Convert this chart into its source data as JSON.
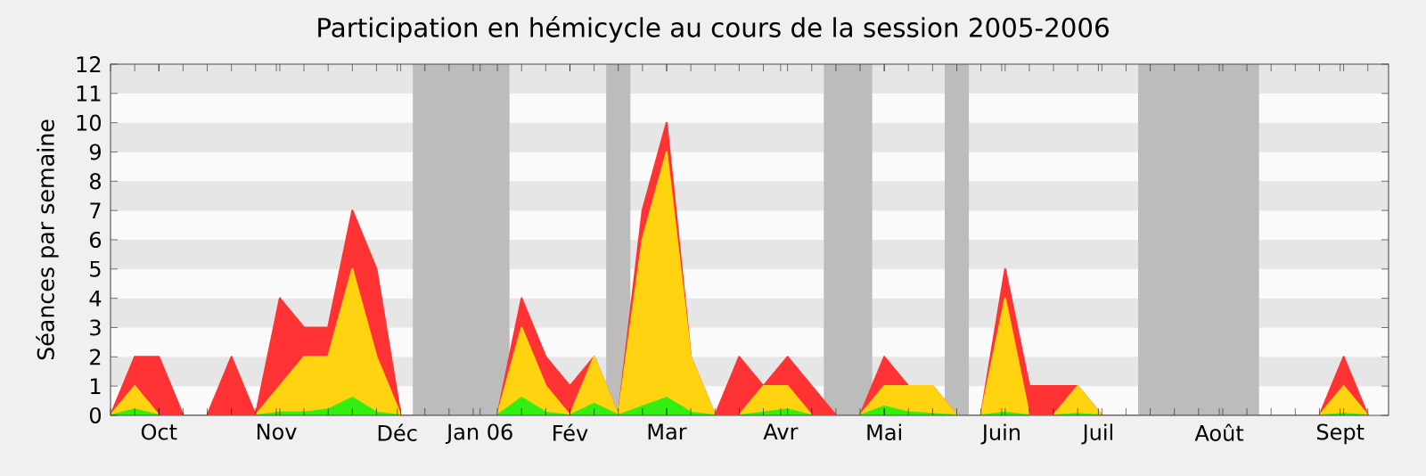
{
  "chart_data": {
    "type": "area",
    "stacked": true,
    "title": "Participation en hémicycle au cours de la session 2005-2006",
    "ylabel": "Séances par semaine",
    "x": [
      "2005-09-26",
      "2005-10-03",
      "2005-10-10",
      "2005-10-17",
      "2005-10-24",
      "2005-10-31",
      "2005-11-07",
      "2005-11-14",
      "2005-11-21",
      "2005-11-28",
      "2005-12-05",
      "2005-12-12",
      "2005-12-19",
      "2005-12-26",
      "2006-01-02",
      "2006-01-09",
      "2006-01-16",
      "2006-01-23",
      "2006-01-30",
      "2006-02-06",
      "2006-02-13",
      "2006-02-20",
      "2006-02-27",
      "2006-03-06",
      "2006-03-13",
      "2006-03-20",
      "2006-03-27",
      "2006-04-03",
      "2006-04-10",
      "2006-04-17",
      "2006-04-24",
      "2006-05-01",
      "2006-05-08",
      "2006-05-15",
      "2006-05-22",
      "2006-05-29",
      "2006-06-05",
      "2006-06-12",
      "2006-06-19",
      "2006-06-26",
      "2006-07-03",
      "2006-07-10",
      "2006-07-17",
      "2006-07-24",
      "2006-07-31",
      "2006-08-07",
      "2006-08-14",
      "2006-08-21",
      "2006-08-28",
      "2006-09-04",
      "2006-09-11",
      "2006-09-18",
      "2006-09-25"
    ],
    "series": [
      {
        "color": "#33ee11",
        "values": [
          0,
          0.2,
          0,
          0,
          0,
          0,
          0,
          0.1,
          0.1,
          0.2,
          0.6,
          0.1,
          0,
          0,
          0,
          0,
          0,
          0.6,
          0.1,
          0,
          0.4,
          0,
          0.3,
          0.6,
          0.1,
          0,
          0,
          0.1,
          0.2,
          0,
          0,
          0,
          0.3,
          0.1,
          0.05,
          0,
          0,
          0.1,
          0,
          0,
          0.05,
          0,
          0,
          0,
          0,
          0,
          0,
          0,
          0,
          0,
          0,
          0.05,
          0
        ]
      },
      {
        "color": "#ffd30f",
        "values": [
          0,
          0.8,
          0,
          0,
          0,
          0,
          0,
          0.9,
          1.9,
          1.8,
          4.4,
          1.9,
          0,
          0,
          0,
          0,
          0,
          2.4,
          0.9,
          0,
          1.6,
          0,
          5.7,
          8.4,
          1.9,
          0,
          0,
          0.9,
          0.8,
          0,
          0,
          0,
          0.7,
          0.9,
          0.95,
          0,
          0,
          3.9,
          0,
          0,
          0.95,
          0,
          0,
          0,
          0,
          0,
          0,
          0,
          0,
          0,
          0,
          0.95,
          0
        ]
      },
      {
        "color": "#ff3333",
        "values": [
          0,
          1,
          2,
          0,
          0,
          2,
          0,
          3,
          1,
          1,
          2,
          3,
          0,
          0,
          0,
          0,
          0,
          1,
          1,
          1,
          0,
          0,
          1,
          1,
          0,
          0,
          2,
          0,
          1,
          1,
          0,
          0,
          1,
          0,
          0,
          0,
          0,
          1,
          1,
          1,
          0,
          0,
          0,
          0,
          0,
          0,
          0,
          0,
          0,
          0,
          0,
          1,
          0
        ]
      }
    ],
    "xlim": [
      "2005-09-26",
      "2006-10-01"
    ],
    "ylim": [
      0,
      12
    ],
    "yticks": [
      0,
      1,
      2,
      3,
      4,
      5,
      6,
      7,
      8,
      9,
      10,
      11,
      12
    ],
    "xticks": [
      {
        "value": "2005-09-26",
        "label": null
      },
      {
        "value": "2005-10-03",
        "label": null
      },
      {
        "value": "2005-10-10",
        "label": null
      },
      {
        "value": "2005-10-17",
        "label": null
      },
      {
        "value": "2005-10-24",
        "label": null
      },
      {
        "value": "2005-10-31",
        "label": null
      },
      {
        "value": "2005-11-07",
        "label": null
      },
      {
        "value": "2005-11-14",
        "label": null
      },
      {
        "value": "2005-11-21",
        "label": null
      },
      {
        "value": "2005-11-28",
        "label": null
      },
      {
        "value": "2005-12-05",
        "label": null
      },
      {
        "value": "2005-12-12",
        "label": null
      },
      {
        "value": "2005-12-19",
        "label": null
      },
      {
        "value": "2005-12-26",
        "label": null
      },
      {
        "value": "2006-01-02",
        "label": null
      },
      {
        "value": "2006-01-09",
        "label": null
      },
      {
        "value": "2006-01-16",
        "label": null
      },
      {
        "value": "2006-01-23",
        "label": null
      },
      {
        "value": "2006-01-30",
        "label": null
      },
      {
        "value": "2006-02-06",
        "label": null
      },
      {
        "value": "2006-02-13",
        "label": null
      },
      {
        "value": "2006-02-20",
        "label": null
      },
      {
        "value": "2006-02-27",
        "label": null
      },
      {
        "value": "2006-03-06",
        "label": null
      },
      {
        "value": "2006-03-13",
        "label": null
      },
      {
        "value": "2006-03-20",
        "label": null
      },
      {
        "value": "2006-03-27",
        "label": null
      },
      {
        "value": "2006-04-03",
        "label": null
      },
      {
        "value": "2006-04-10",
        "label": null
      },
      {
        "value": "2006-04-17",
        "label": null
      },
      {
        "value": "2006-04-24",
        "label": null
      },
      {
        "value": "2006-05-01",
        "label": null
      },
      {
        "value": "2006-05-08",
        "label": null
      },
      {
        "value": "2006-05-15",
        "label": null
      },
      {
        "value": "2006-05-22",
        "label": null
      },
      {
        "value": "2006-05-29",
        "label": null
      },
      {
        "value": "2006-06-05",
        "label": null
      },
      {
        "value": "2006-06-12",
        "label": null
      },
      {
        "value": "2006-06-19",
        "label": null
      },
      {
        "value": "2006-06-26",
        "label": null
      },
      {
        "value": "2006-07-03",
        "label": null
      },
      {
        "value": "2006-07-10",
        "label": null
      },
      {
        "value": "2006-07-17",
        "label": null
      },
      {
        "value": "2006-07-24",
        "label": null
      },
      {
        "value": "2006-07-31",
        "label": null
      },
      {
        "value": "2006-08-07",
        "label": null
      },
      {
        "value": "2006-08-14",
        "label": null
      },
      {
        "value": "2006-08-21",
        "label": null
      },
      {
        "value": "2006-08-28",
        "label": null
      },
      {
        "value": "2006-09-04",
        "label": null
      },
      {
        "value": "2006-09-11",
        "label": null
      },
      {
        "value": "2006-09-18",
        "label": null
      },
      {
        "value": "2006-09-25",
        "label": null
      },
      {
        "value": "2005-10-10",
        "label": "Oct"
      },
      {
        "value": "2005-11-13",
        "label": "Nov"
      },
      {
        "value": "2005-12-18",
        "label": "Déc"
      },
      {
        "value": "2006-01-11",
        "label": "Jan 06"
      },
      {
        "value": "2006-02-06",
        "label": "Fév"
      },
      {
        "value": "2006-03-06",
        "label": "Mar"
      },
      {
        "value": "2006-04-08",
        "label": "Avr"
      },
      {
        "value": "2006-05-08",
        "label": "Mai"
      },
      {
        "value": "2006-06-11",
        "label": "Juin"
      },
      {
        "value": "2006-07-09",
        "label": "Juil"
      },
      {
        "value": "2006-08-13",
        "label": "Août"
      },
      {
        "value": "2006-09-17",
        "label": "Sept"
      }
    ],
    "bands": [
      {
        "axis": "x",
        "from": "2005-12-22T12:00",
        "to": "2006-01-19T12:00",
        "color": "#bcbcbc"
      },
      {
        "axis": "x",
        "from": "2006-02-16T12:00",
        "to": "2006-02-23T12:00",
        "color": "#bcbcbc"
      },
      {
        "axis": "x",
        "from": "2006-04-20T12:00",
        "to": "2006-05-04T12:00",
        "color": "#bcbcbc"
      },
      {
        "axis": "x",
        "from": "2006-05-25T12:00",
        "to": "2006-06-01T12:00",
        "color": "#bcbcbc"
      },
      {
        "axis": "x",
        "from": "2006-07-20T12:00",
        "to": "2006-08-24T12:00",
        "color": "#bcbcbc"
      }
    ]
  }
}
